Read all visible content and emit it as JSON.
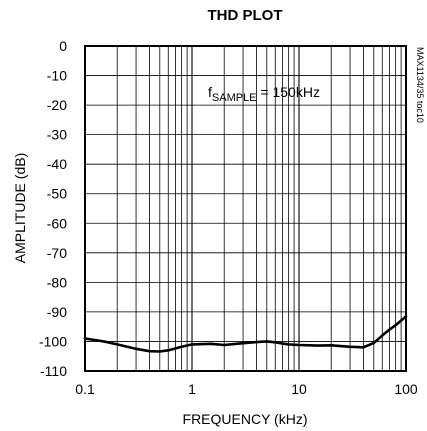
{
  "chart_data": {
    "type": "line",
    "title": "THD PLOT",
    "xlabel": "FREQUENCY (kHz)",
    "ylabel": "AMPLITUDE (dB)",
    "x_scale": "log",
    "xlim": [
      0.1,
      100
    ],
    "ylim": [
      -110,
      0
    ],
    "grid": true,
    "x_tick_labels": [
      "0.1",
      "1",
      "10",
      "100"
    ],
    "y_tick_labels": [
      "0",
      "-10",
      "-20",
      "-30",
      "-40",
      "-50",
      "-60",
      "-70",
      "-80",
      "-90",
      "-100",
      "-110"
    ],
    "annotation": {
      "prefix": "f",
      "subscript": "SAMPLE",
      "suffix": " = 150kHz"
    },
    "side_label": "MAX1134/35 toc10",
    "series": [
      {
        "color": "#000000",
        "x": [
          0.1,
          0.15,
          0.2,
          0.3,
          0.4,
          0.5,
          0.6,
          0.8,
          1.0,
          1.5,
          2.0,
          3.0,
          4.0,
          5.0,
          6.0,
          8.0,
          10,
          15,
          20,
          30,
          40,
          50,
          60,
          70,
          80,
          100
        ],
        "y": [
          -99.0,
          -100.0,
          -101.0,
          -102.5,
          -103.3,
          -103.4,
          -103.0,
          -101.8,
          -101.0,
          -100.8,
          -101.2,
          -100.6,
          -100.2,
          -100.0,
          -100.3,
          -101.0,
          -101.2,
          -101.4,
          -101.3,
          -101.8,
          -102.0,
          -100.5,
          -98.0,
          -96.0,
          -94.5,
          -91.5
        ]
      }
    ]
  }
}
